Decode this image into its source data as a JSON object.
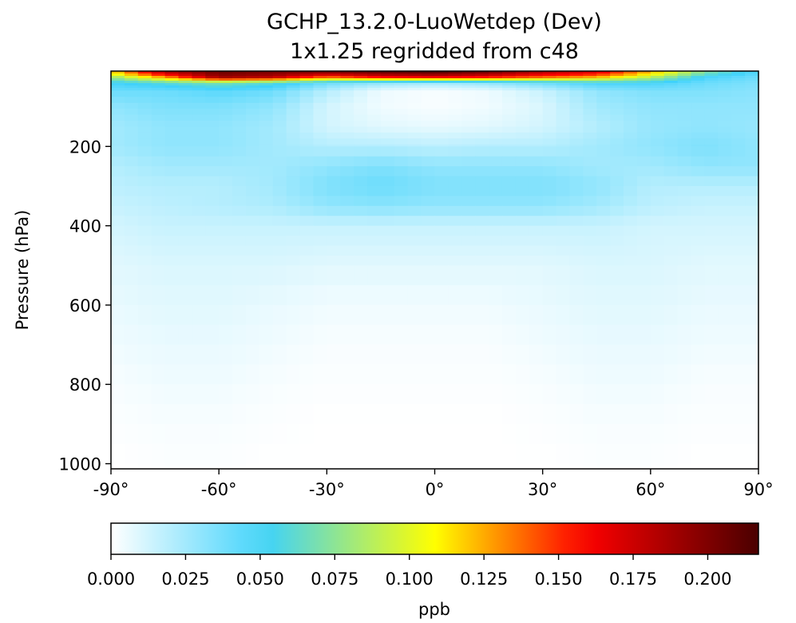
{
  "chart_data": {
    "type": "heatmap",
    "title": "GCHP_13.2.0-LuoWetdep (Dev)",
    "subtitle": "1x1.25 regridded from c48",
    "xlabel": "",
    "ylabel": "Pressure (hPa)",
    "xlim": [
      -90,
      90
    ],
    "ylim": [
      1013,
      10
    ],
    "y_inverted": true,
    "grid": false,
    "x_ticks": [
      -90,
      -60,
      -30,
      0,
      30,
      60,
      90
    ],
    "x_tick_labels": [
      "-90°",
      "-60°",
      "-30°",
      "0°",
      "30°",
      "60°",
      "90°"
    ],
    "y_ticks": [
      200,
      400,
      600,
      800,
      1000
    ],
    "y_tick_labels": [
      "200",
      "400",
      "600",
      "800",
      "1000"
    ],
    "colorbar": {
      "label": "ppb",
      "orientation": "horizontal",
      "placement": "bottom",
      "range": [
        0,
        0.217
      ],
      "ticks": [
        0,
        0.025,
        0.05,
        0.075,
        0.1,
        0.125,
        0.15,
        0.175,
        0.2
      ],
      "tick_labels": [
        "0.000",
        "0.025",
        "0.050",
        "0.075",
        "0.100",
        "0.125",
        "0.150",
        "0.175",
        "0.200"
      ],
      "colormap": [
        "#ffffff",
        "#3fd2fb",
        "#ffff00",
        "#ff0000",
        "#4a0000"
      ],
      "colormap_stops": [
        0,
        0.24,
        0.5,
        0.73,
        1
      ]
    },
    "latitudes": [
      -90,
      -75,
      -60,
      -45,
      -30,
      -15,
      0,
      15,
      30,
      45,
      60,
      75,
      90
    ],
    "pressure_levels": [
      15,
      25,
      40,
      60,
      100,
      150,
      200,
      250,
      300,
      350,
      400,
      500,
      600,
      700,
      800,
      900,
      1000
    ],
    "values": [
      [
        0.11,
        0.18,
        0.205,
        0.2,
        0.195,
        0.205,
        0.21,
        0.2,
        0.18,
        0.165,
        0.12,
        0.07,
        0.045
      ],
      [
        0.08,
        0.13,
        0.19,
        0.18,
        0.14,
        0.16,
        0.165,
        0.155,
        0.14,
        0.125,
        0.09,
        0.05,
        0.04
      ],
      [
        0.05,
        0.06,
        0.07,
        0.06,
        0.04,
        0.03,
        0.025,
        0.03,
        0.04,
        0.05,
        0.05,
        0.04,
        0.035
      ],
      [
        0.04,
        0.04,
        0.045,
        0.04,
        0.02,
        0.005,
        0.002,
        0.005,
        0.015,
        0.03,
        0.035,
        0.035,
        0.032
      ],
      [
        0.03,
        0.035,
        0.035,
        0.03,
        0.012,
        0.004,
        0.002,
        0.004,
        0.01,
        0.025,
        0.03,
        0.03,
        0.03
      ],
      [
        0.025,
        0.03,
        0.03,
        0.025,
        0.012,
        0.008,
        0.006,
        0.008,
        0.012,
        0.02,
        0.028,
        0.03,
        0.028
      ],
      [
        0.025,
        0.03,
        0.03,
        0.025,
        0.02,
        0.02,
        0.018,
        0.02,
        0.02,
        0.025,
        0.03,
        0.035,
        0.03
      ],
      [
        0.02,
        0.025,
        0.025,
        0.025,
        0.03,
        0.035,
        0.03,
        0.03,
        0.03,
        0.025,
        0.025,
        0.03,
        0.03
      ],
      [
        0.018,
        0.02,
        0.02,
        0.025,
        0.035,
        0.04,
        0.035,
        0.035,
        0.035,
        0.03,
        0.02,
        0.02,
        0.02
      ],
      [
        0.015,
        0.018,
        0.02,
        0.022,
        0.03,
        0.032,
        0.03,
        0.03,
        0.03,
        0.025,
        0.018,
        0.015,
        0.015
      ],
      [
        0.012,
        0.015,
        0.015,
        0.015,
        0.015,
        0.015,
        0.015,
        0.015,
        0.015,
        0.015,
        0.012,
        0.012,
        0.012
      ],
      [
        0.008,
        0.01,
        0.01,
        0.01,
        0.008,
        0.008,
        0.008,
        0.008,
        0.008,
        0.01,
        0.01,
        0.008,
        0.008
      ],
      [
        0.006,
        0.008,
        0.008,
        0.006,
        0.004,
        0.004,
        0.004,
        0.004,
        0.006,
        0.008,
        0.008,
        0.006,
        0.006
      ],
      [
        0.004,
        0.006,
        0.006,
        0.004,
        0.002,
        0.002,
        0.002,
        0.002,
        0.004,
        0.006,
        0.006,
        0.004,
        0.004
      ],
      [
        0.002,
        0.004,
        0.004,
        0.002,
        0.001,
        0.001,
        0.001,
        0.001,
        0.002,
        0.004,
        0.004,
        0.002,
        0.002
      ],
      [
        0.001,
        0.002,
        0.002,
        0.001,
        0.0,
        0.0,
        0.0,
        0.0,
        0.001,
        0.002,
        0.002,
        0.001,
        0.001
      ],
      [
        0.0,
        0.001,
        0.001,
        0.0,
        0.0,
        0.0,
        0.0,
        0.0,
        0.0,
        0.001,
        0.001,
        0.0,
        0.0
      ]
    ]
  }
}
